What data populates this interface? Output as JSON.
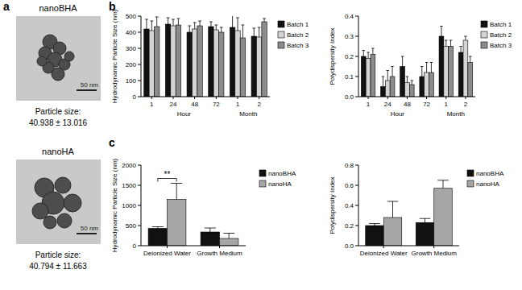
{
  "panel_labels": [
    "a",
    "b",
    "c"
  ],
  "images": [
    {
      "title": "nanoBHA",
      "scale_bar": "50 nm",
      "caption": "Particle size:",
      "size": "40.938 ± 13.016"
    },
    {
      "title": "nanoHA",
      "scale_bar": "50 nm",
      "caption": "Particle size:",
      "size": "40.794 ± 11.663"
    }
  ],
  "chart_data": [
    {
      "type": "bar",
      "y_label": "Hydrodynamic Particle Size (nm)",
      "categories": [
        "1",
        "24",
        "48",
        "72",
        "1",
        "2"
      ],
      "category_groups": [
        "Hour",
        "Hour",
        "Hour",
        "Hour",
        "Month",
        "Month"
      ],
      "series": [
        {
          "name": "Batch 1",
          "color": "#111111",
          "values": [
            420,
            450,
            400,
            435,
            430,
            375
          ],
          "errors": [
            60,
            40,
            40,
            30,
            80,
            50
          ]
        },
        {
          "name": "Batch 2",
          "color": "#d4d4d4",
          "values": [
            410,
            440,
            420,
            415,
            410,
            370
          ],
          "errors": [
            60,
            40,
            40,
            30,
            80,
            60
          ]
        },
        {
          "name": "Batch 3",
          "color": "#8c8c8c",
          "values": [
            435,
            445,
            440,
            400,
            365,
            465
          ],
          "errors": [
            60,
            40,
            30,
            30,
            80,
            20
          ]
        }
      ],
      "ylim": [
        0,
        500
      ],
      "yticks": [
        0,
        100,
        200,
        300,
        400,
        500
      ],
      "legend": "right",
      "grid": false
    },
    {
      "type": "bar",
      "y_label": "Polydispersity Index",
      "categories": [
        "1",
        "24",
        "48",
        "72",
        "1",
        "2"
      ],
      "category_groups": [
        "Hour",
        "Hour",
        "Hour",
        "Hour",
        "Month",
        "Month"
      ],
      "series": [
        {
          "name": "Batch 1",
          "color": "#111111",
          "values": [
            0.2,
            0.05,
            0.15,
            0.1,
            0.3,
            0.22
          ],
          "errors": [
            0.03,
            0.05,
            0.05,
            0.05,
            0.05,
            0.03
          ]
        },
        {
          "name": "Batch 2",
          "color": "#d4d4d4",
          "values": [
            0.19,
            0.08,
            0.07,
            0.12,
            0.25,
            0.28
          ],
          "errors": [
            0.03,
            0.05,
            0.03,
            0.05,
            0.03,
            0.02
          ]
        },
        {
          "name": "Batch 3",
          "color": "#8c8c8c",
          "values": [
            0.21,
            0.1,
            0.06,
            0.12,
            0.25,
            0.17
          ],
          "errors": [
            0.03,
            0.05,
            0.02,
            0.05,
            0.03,
            0.03
          ]
        }
      ],
      "ylim": [
        0,
        0.4
      ],
      "yticks": [
        {
          "value": 0,
          "label": "0.0"
        },
        0.1,
        0.2,
        0.3,
        0.4
      ],
      "legend": "right",
      "grid": false
    },
    {
      "type": "bar",
      "y_label": "Hydrodynamic Particle Size (nm)",
      "categories": [
        "Deionized Water",
        "Growth Medium"
      ],
      "series": [
        {
          "name": "nanoBHA",
          "color": "#111111",
          "values": [
            430,
            340
          ],
          "errors": [
            40,
            100
          ]
        },
        {
          "name": "nanoHA",
          "color": "#a6a6a6",
          "values": [
            1150,
            180
          ],
          "errors": [
            400,
            130
          ]
        }
      ],
      "annotations": [
        {
          "text": "**",
          "category": "Deionized Water",
          "between": [
            "nanoBHA",
            "nanoHA"
          ]
        }
      ],
      "ylim": [
        0,
        2000
      ],
      "yticks": [
        0,
        500,
        1000,
        1500,
        2000
      ],
      "legend": "right",
      "grid": false
    },
    {
      "type": "bar",
      "y_label": "Polydispersity Index",
      "categories": [
        "Deionized Water",
        "Growth Medium"
      ],
      "series": [
        {
          "name": "nanoBHA",
          "color": "#111111",
          "values": [
            0.2,
            0.23
          ],
          "errors": [
            0.02,
            0.04
          ]
        },
        {
          "name": "nanoHA",
          "color": "#a6a6a6",
          "values": [
            0.28,
            0.57
          ],
          "errors": [
            0.16,
            0.08
          ]
        }
      ],
      "ylim": [
        0,
        0.8
      ],
      "yticks": [
        {
          "value": 0,
          "label": "0.0"
        },
        0.2,
        0.4,
        0.6,
        0.8
      ],
      "legend": "right",
      "grid": false
    }
  ]
}
